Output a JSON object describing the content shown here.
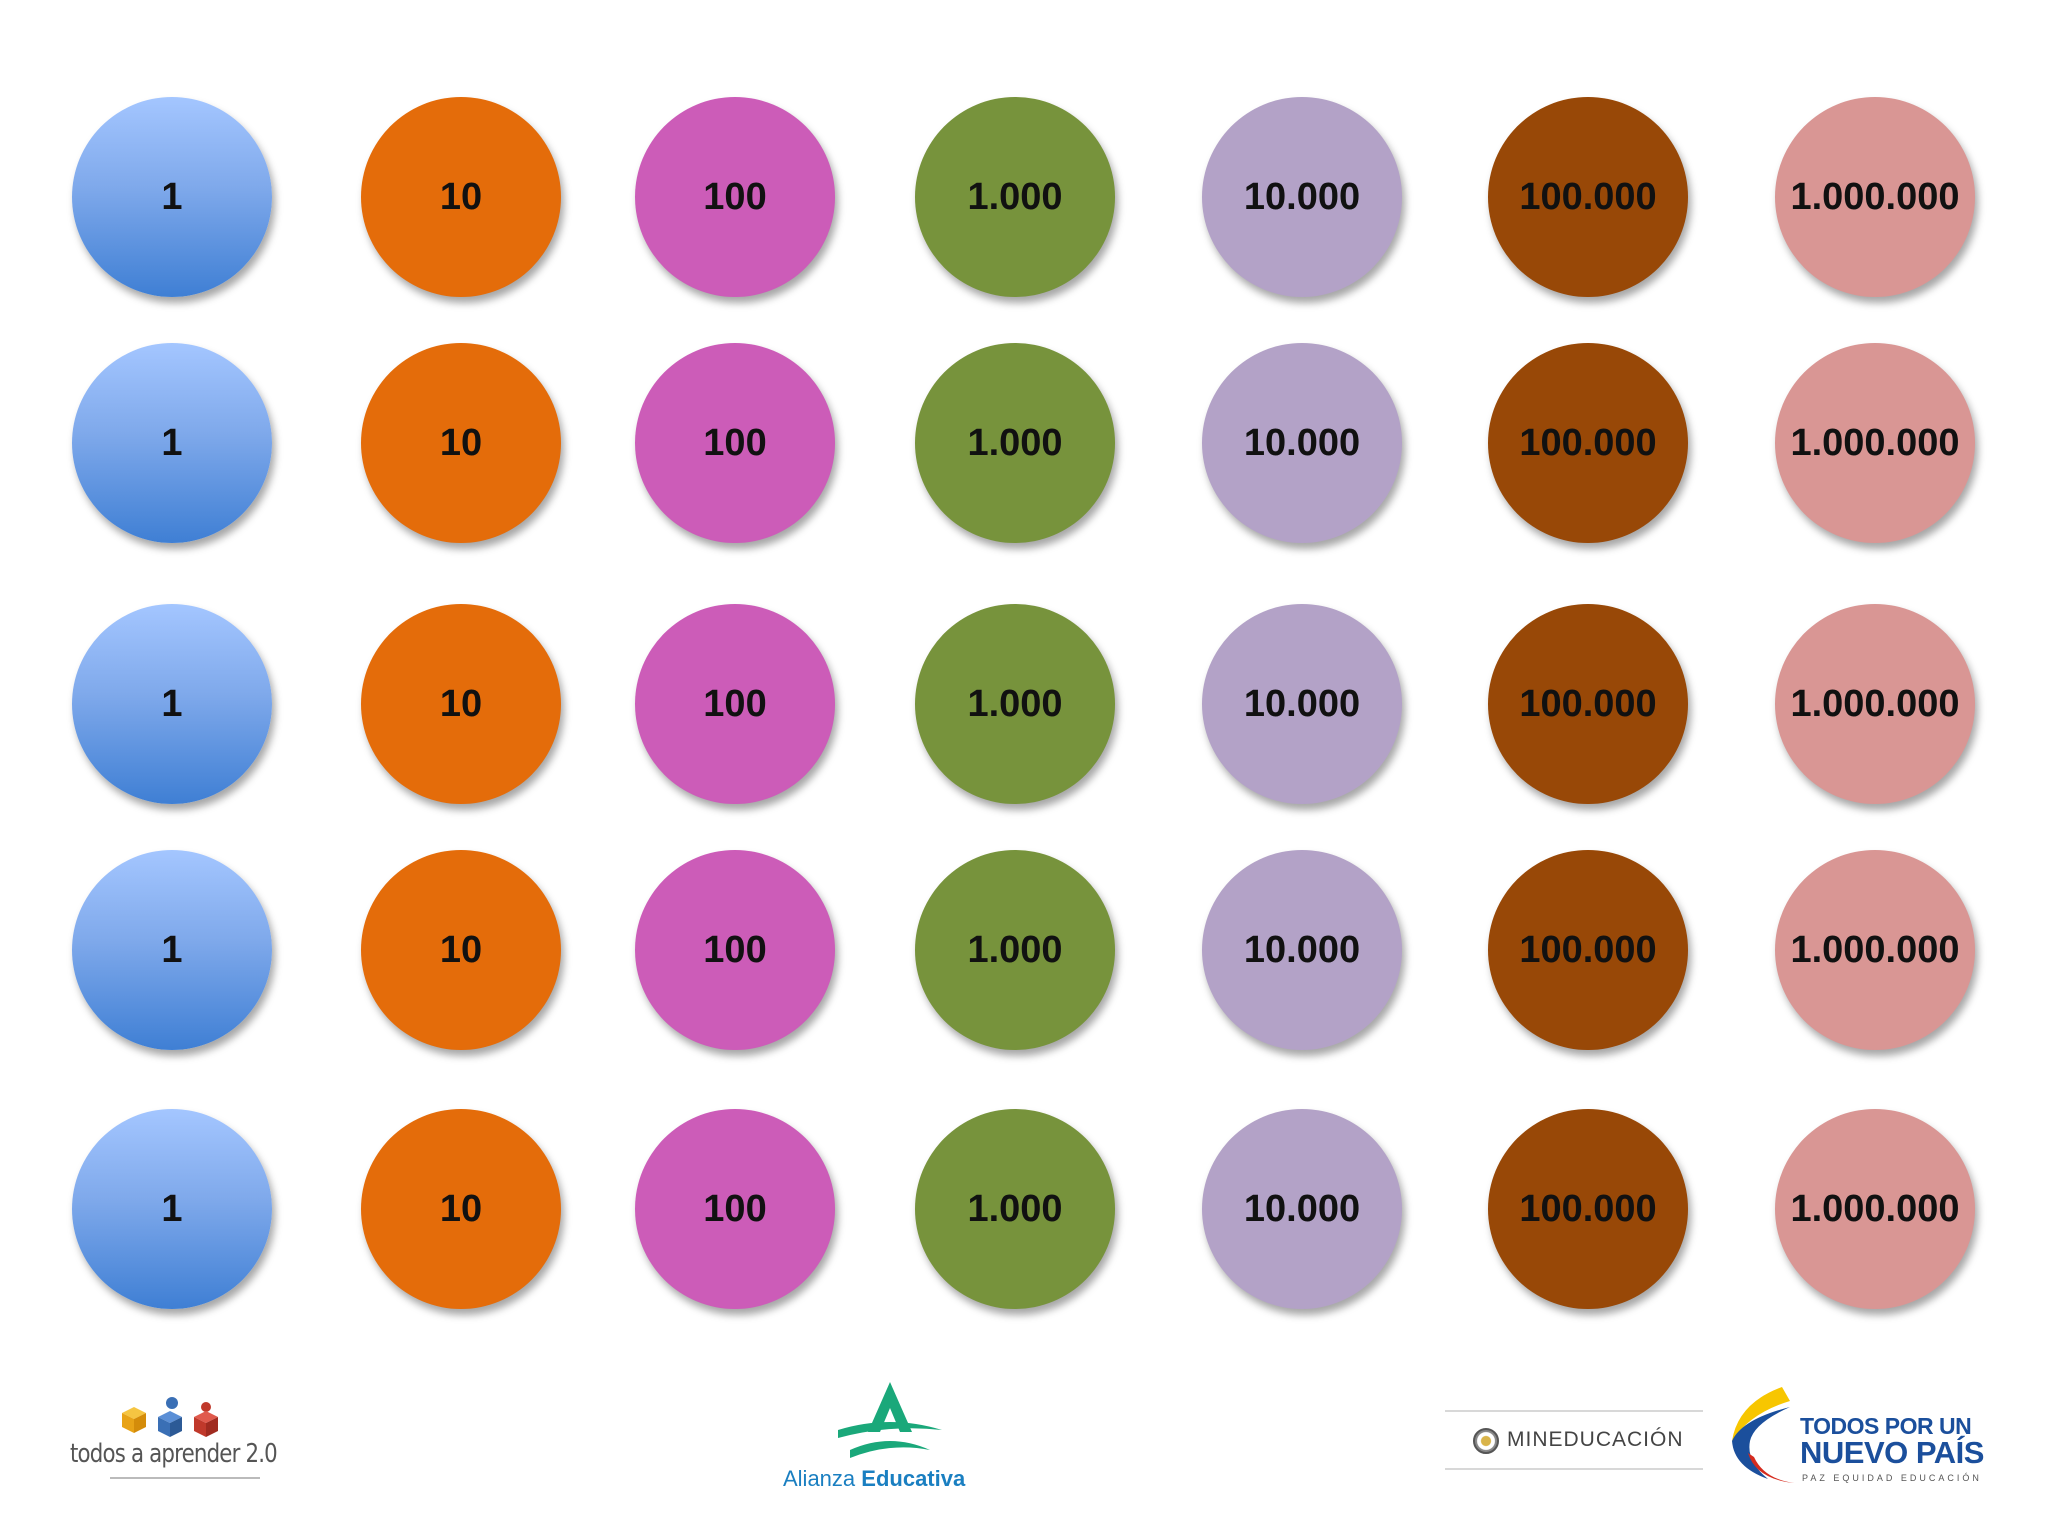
{
  "tokens": {
    "rows": [
      [
        "1",
        "10",
        "100",
        "1.000",
        "10.000",
        "100.000",
        "1.000.000"
      ],
      [
        "1",
        "10",
        "100",
        "1.000",
        "10.000",
        "100.000",
        "1.000.000"
      ],
      [
        "1",
        "10",
        "100",
        "1.000",
        "10.000",
        "100.000",
        "1.000.000"
      ],
      [
        "1",
        "10",
        "100",
        "1.000",
        "10.000",
        "100.000",
        "1.000.000"
      ],
      [
        "1",
        "10",
        "100",
        "1.000",
        "10.000",
        "100.000",
        "1.000.000"
      ]
    ],
    "colors": {
      "1": "gradient-blue",
      "10": "#e46c0a",
      "100": "#cc5cb8",
      "1.000": "#77933c",
      "10.000": "#b3a2c7",
      "100.000": "#984807",
      "1.000.000": "#d99694"
    }
  },
  "footer": {
    "todos_aprender": "todos a aprender 2.0",
    "alianza_part1": "Alianza",
    "alianza_part2": "Educativa",
    "mineducacion": "MINEDUCACIÓN",
    "todos_por_line1": "TODOS POR UN",
    "todos_por_line2": "NUEVO PAÍS",
    "todos_por_line3": "PAZ   EQUIDAD   EDUCACIÓN"
  }
}
